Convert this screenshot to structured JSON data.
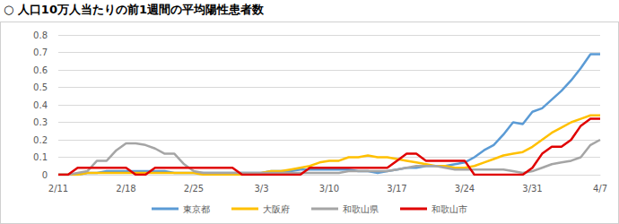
{
  "chart_data": {
    "type": "line",
    "title": "○ 人口10万人当たりの前1週間の平均陽性患者数",
    "categories": [
      "2/11",
      null,
      null,
      null,
      null,
      null,
      null,
      "2/18",
      null,
      null,
      null,
      null,
      null,
      null,
      "2/25",
      null,
      null,
      null,
      null,
      null,
      null,
      "3/3",
      null,
      null,
      null,
      null,
      null,
      null,
      "3/10",
      null,
      null,
      null,
      null,
      null,
      null,
      "3/17",
      null,
      null,
      null,
      null,
      null,
      null,
      "3/24",
      null,
      null,
      null,
      null,
      null,
      null,
      "3/31",
      null,
      null,
      null,
      null,
      null,
      null,
      "4/7"
    ],
    "series": [
      {
        "name": "東京都",
        "color": "#5b9bd5",
        "values": [
          0,
          0,
          0,
          0.01,
          0.01,
          0.02,
          0.02,
          0.02,
          0.02,
          0.02,
          0.02,
          0.02,
          0.01,
          0.01,
          0.01,
          0.01,
          0.01,
          0.01,
          0.01,
          0.01,
          0.01,
          0.01,
          0.02,
          0.02,
          0.02,
          0.03,
          0.03,
          0.03,
          0.03,
          0.03,
          0.03,
          0.02,
          0.02,
          0.01,
          0.02,
          0.03,
          0.04,
          0.04,
          0.05,
          0.05,
          0.05,
          0.06,
          0.07,
          0.1,
          0.14,
          0.17,
          0.23,
          0.3,
          0.29,
          0.36,
          0.38,
          0.43,
          0.48,
          0.54,
          0.61,
          0.69,
          0.69
        ]
      },
      {
        "name": "大阪府",
        "color": "#ffc000",
        "values": [
          0,
          0,
          0,
          0.01,
          0.01,
          0.01,
          0.01,
          0.01,
          0.01,
          0.01,
          0.01,
          0.01,
          0.01,
          0.01,
          0.01,
          0,
          0,
          0,
          0,
          0,
          0,
          0.01,
          0.02,
          0.02,
          0.03,
          0.04,
          0.05,
          0.07,
          0.08,
          0.08,
          0.1,
          0.1,
          0.11,
          0.1,
          0.1,
          0.09,
          0.08,
          0.07,
          0.06,
          0.05,
          0.05,
          0.04,
          0.04,
          0.05,
          0.07,
          0.09,
          0.11,
          0.12,
          0.13,
          0.16,
          0.2,
          0.24,
          0.27,
          0.3,
          0.32,
          0.34,
          0.34
        ]
      },
      {
        "name": "和歌山県",
        "color": "#a5a5a5",
        "values": [
          0,
          0,
          0.01,
          0.02,
          0.08,
          0.08,
          0.14,
          0.18,
          0.18,
          0.17,
          0.15,
          0.12,
          0.12,
          0.06,
          0.02,
          0.01,
          0.01,
          0.01,
          0.01,
          0.01,
          0.01,
          0.01,
          0.01,
          0.01,
          0.01,
          0.01,
          0.01,
          0.01,
          0.01,
          0.01,
          0.02,
          0.02,
          0.02,
          0.02,
          0.02,
          0.03,
          0.04,
          0.05,
          0.05,
          0.05,
          0.04,
          0.03,
          0.03,
          0.03,
          0.03,
          0.03,
          0.03,
          0.02,
          0.01,
          0.02,
          0.04,
          0.06,
          0.07,
          0.08,
          0.1,
          0.17,
          0.2
        ]
      },
      {
        "name": "和歌山市",
        "color": "#e00000",
        "values": [
          0,
          0,
          0.04,
          0.04,
          0.04,
          0.04,
          0.04,
          0.04,
          0,
          0,
          0.04,
          0.04,
          0.04,
          0.04,
          0.04,
          0.04,
          0.04,
          0.04,
          0.04,
          0,
          0,
          0,
          0,
          0,
          0,
          0,
          0.04,
          0.04,
          0.04,
          0.04,
          0.04,
          0.04,
          0.04,
          0.04,
          0.04,
          0.08,
          0.12,
          0.12,
          0.08,
          0.08,
          0.08,
          0.08,
          0.08,
          0,
          0,
          0,
          0,
          0,
          0,
          0.04,
          0.12,
          0.16,
          0.16,
          0.2,
          0.28,
          0.32,
          0.32
        ]
      }
    ],
    "ylim": [
      0,
      0.8
    ],
    "yticks": [
      0,
      0.1,
      0.2,
      0.3,
      0.4,
      0.5,
      0.6,
      0.7,
      0.8
    ],
    "grid": true,
    "legend": "bottom"
  }
}
